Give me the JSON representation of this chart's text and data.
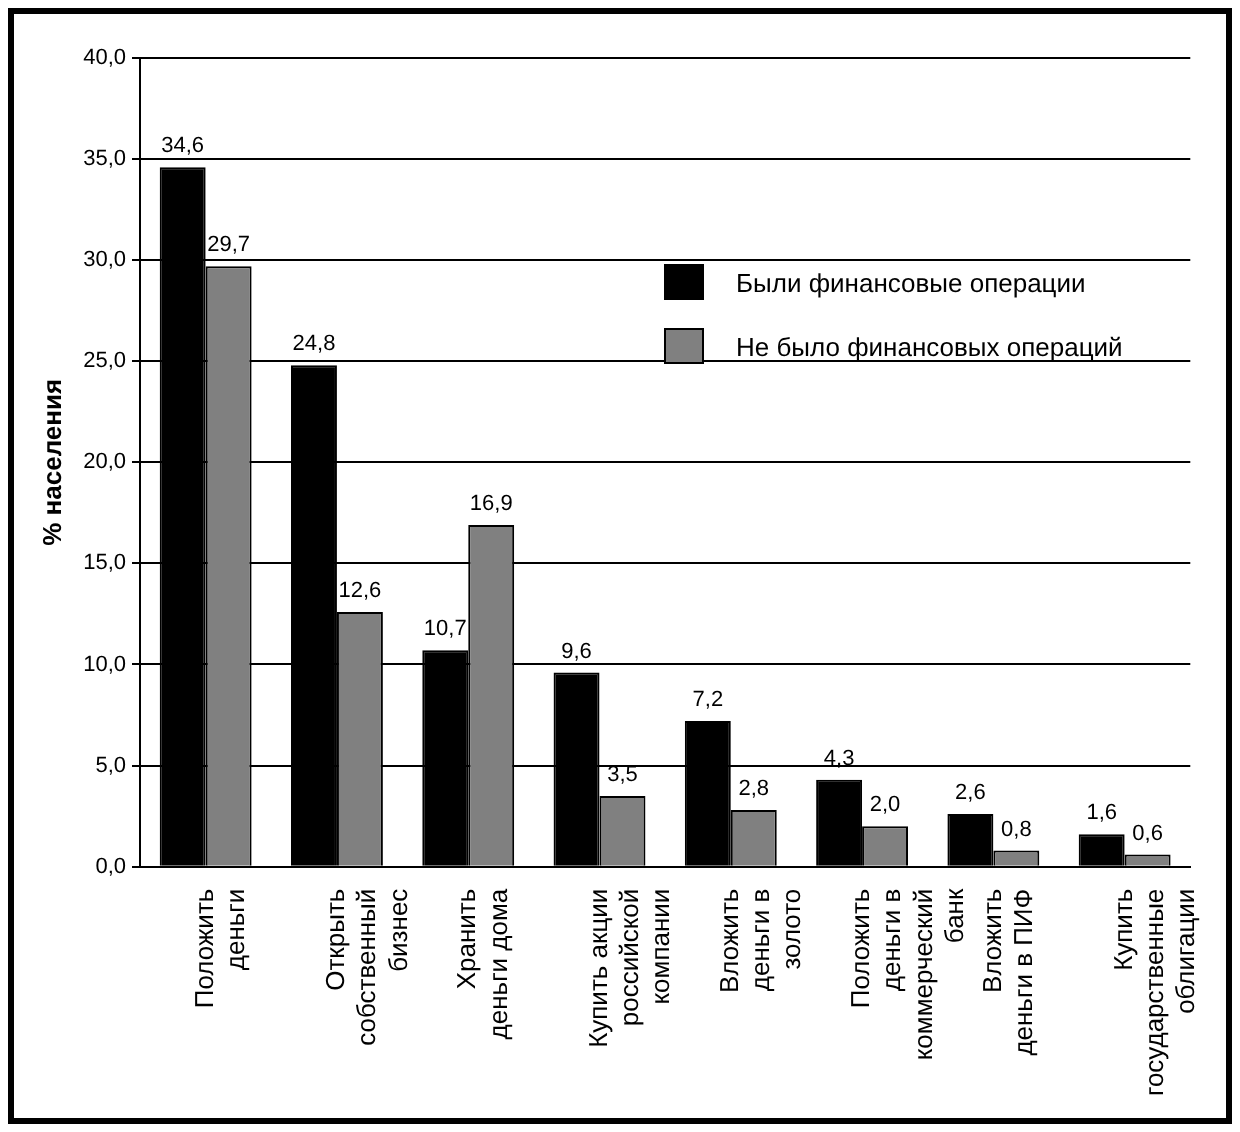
{
  "chart_data": {
    "type": "bar",
    "ylabel": "% населения",
    "categories": [
      "Положить деньги",
      "Открыть собственный бизнес",
      "Хранить деньги дома",
      "Купить акции российской компании",
      "Вложить деньги в золото",
      "Положить деньги в коммерческий банк",
      "Вложить деньги в ПИФ",
      "Купить государственные облигации"
    ],
    "series": [
      {
        "name": "Были финансовые операции",
        "color": "#000000",
        "values": [
          34.6,
          24.8,
          10.7,
          9.6,
          7.2,
          4.3,
          2.6,
          1.6
        ],
        "value_labels": [
          "34,6",
          "24,8",
          "10,7",
          "9,6",
          "7,2",
          "4,3",
          "2,6",
          "1,6"
        ]
      },
      {
        "name": "Не было финансовых операций",
        "color": "#808080",
        "values": [
          29.7,
          12.6,
          16.9,
          3.5,
          2.8,
          2.0,
          0.8,
          0.6
        ],
        "value_labels": [
          "29,7",
          "12,6",
          "16,9",
          "3,5",
          "2,8",
          "2,0",
          "0,8",
          "0,6"
        ]
      }
    ],
    "ylim": [
      0,
      40
    ],
    "yticks": [
      {
        "value": 0,
        "label": "0,0"
      },
      {
        "value": 5,
        "label": "5,0"
      },
      {
        "value": 10,
        "label": "10,0"
      },
      {
        "value": 15,
        "label": "15,0"
      },
      {
        "value": 20,
        "label": "20,0"
      },
      {
        "value": 25,
        "label": "25,0"
      },
      {
        "value": 30,
        "label": "30,0"
      },
      {
        "value": 35,
        "label": "35,0"
      },
      {
        "value": 40,
        "label": "40,0"
      }
    ],
    "grid": "y",
    "legend": "top right"
  }
}
